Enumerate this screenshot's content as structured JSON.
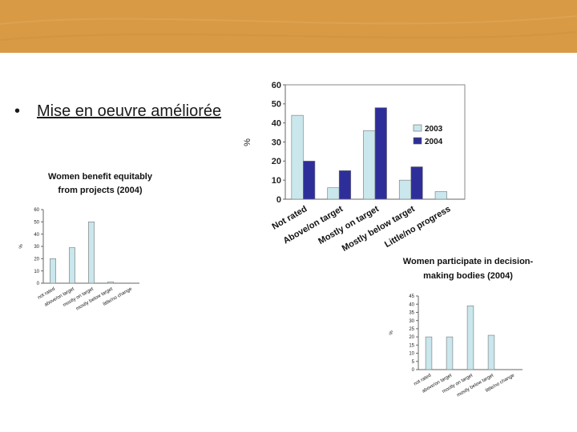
{
  "slide": {
    "bullet": "•",
    "text": "Mise en oeuvre améliorée"
  },
  "theme": {
    "banner_color": "#d89a45",
    "bar_light": "#c9e7ec",
    "bar_dark": "#2e2e9a"
  },
  "chart_data": [
    {
      "type": "bar",
      "title": "",
      "xlabel": "",
      "ylabel": "%",
      "ylim": [
        0,
        60
      ],
      "yticks": [
        "0",
        "10",
        "20",
        "30",
        "40",
        "50",
        "60"
      ],
      "categories": [
        "Not rated",
        "Above/on target",
        "Mostly on target",
        "Mostly below target",
        "Little/no progress"
      ],
      "series": [
        {
          "name": "2003",
          "color": "#c9e7ec",
          "values": [
            44,
            6,
            36,
            10,
            4
          ]
        },
        {
          "name": "2004",
          "color": "#2e2e9a",
          "values": [
            20,
            15,
            48,
            17,
            0
          ]
        }
      ],
      "legend": "right",
      "grid": false
    },
    {
      "type": "bar",
      "title": "Women benefit equitably from projects (2004)",
      "title_lines": [
        "Women benefit equitably",
        "from projects (2004)"
      ],
      "xlabel": "",
      "ylabel": "%",
      "ylim": [
        0,
        60
      ],
      "yticks": [
        "0",
        "10",
        "20",
        "30",
        "40",
        "50",
        "60"
      ],
      "categories": [
        "not rated",
        "above/on target",
        "mostly on target",
        "mostly below target",
        "little/no change"
      ],
      "values": [
        20,
        29,
        50,
        1,
        0
      ],
      "grid": false
    },
    {
      "type": "bar",
      "title": "Women participate in decision-making bodies (2004)",
      "title_lines": [
        "Women participate in decision-",
        "making bodies (2004)"
      ],
      "xlabel": "",
      "ylabel": "%",
      "ylim": [
        0,
        45
      ],
      "yticks": [
        "0",
        "5",
        "10",
        "15",
        "20",
        "25",
        "30",
        "35",
        "40",
        "45"
      ],
      "categories": [
        "not rated",
        "above/on target",
        "mostly on target",
        "mostly below target",
        "little/no change"
      ],
      "values": [
        20,
        20,
        39,
        21,
        0
      ],
      "grid": false
    }
  ]
}
